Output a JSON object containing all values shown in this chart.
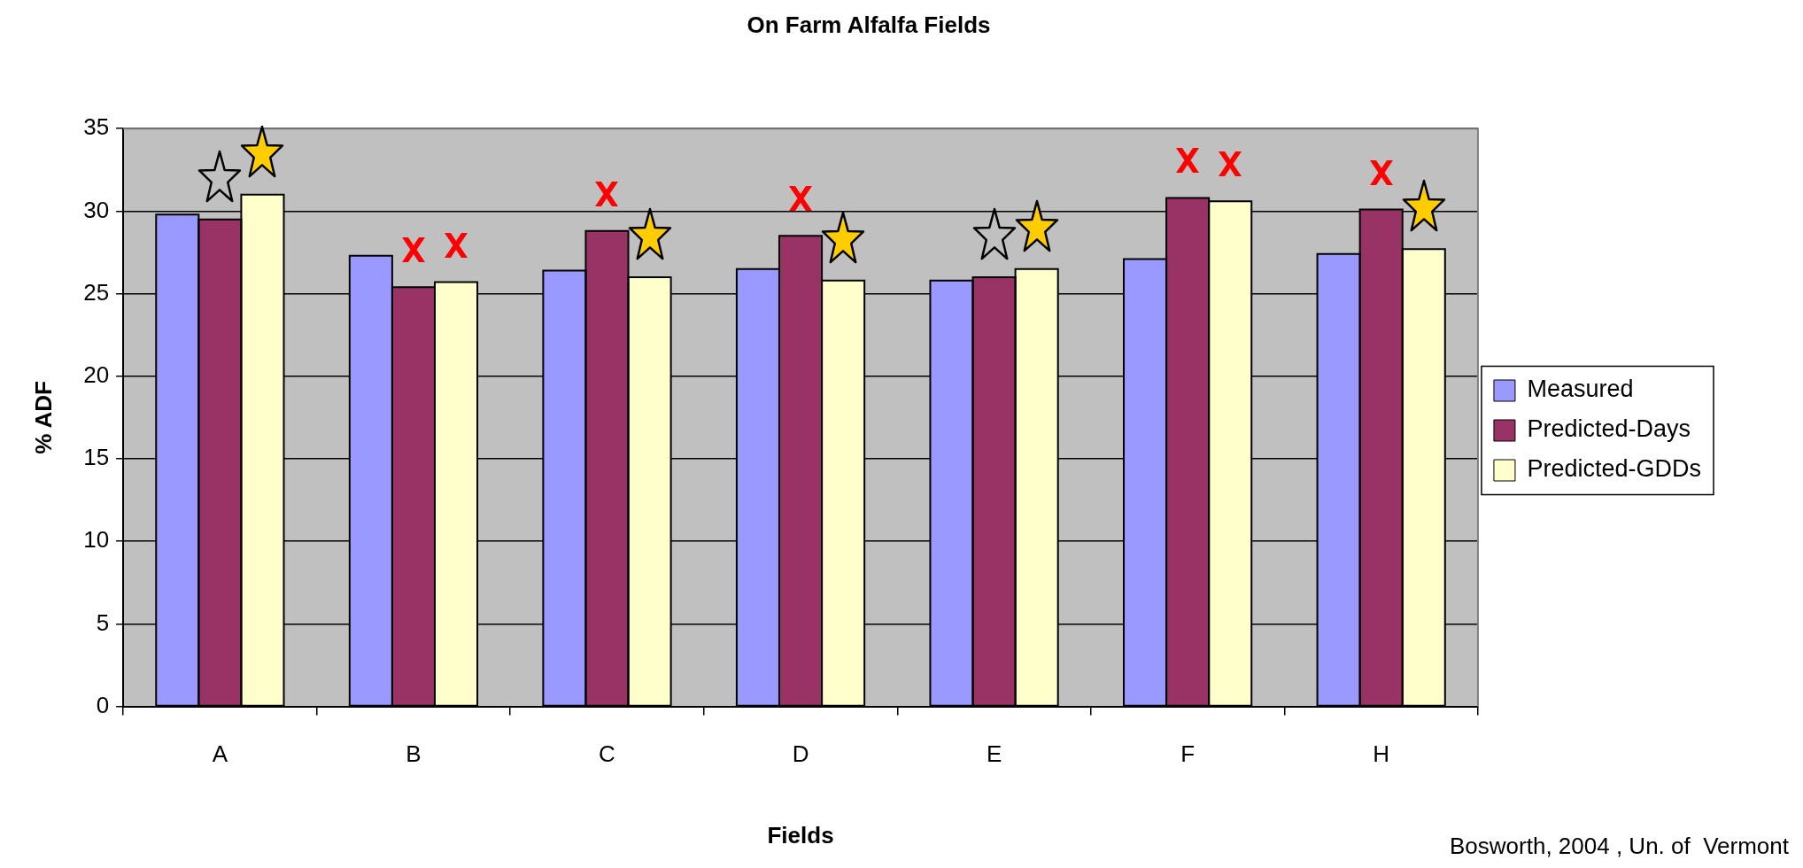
{
  "chart_data": {
    "type": "bar",
    "title": "On Farm Alfalfa Fields",
    "xlabel": "Fields",
    "ylabel": "% ADF",
    "categories": [
      "A",
      "B",
      "C",
      "D",
      "E",
      "F",
      "H"
    ],
    "series": [
      {
        "name": "Measured",
        "color": "#9999ff",
        "values": [
          29.8,
          27.3,
          26.4,
          26.5,
          25.8,
          27.1,
          27.4
        ]
      },
      {
        "name": "Predicted-Days",
        "color": "#993366",
        "values": [
          29.5,
          25.4,
          28.8,
          28.5,
          26.0,
          30.8,
          30.1
        ]
      },
      {
        "name": "Predicted-GDDs",
        "color": "#ffffcc",
        "values": [
          31.0,
          25.7,
          26.0,
          25.8,
          26.5,
          30.6,
          27.7
        ]
      }
    ],
    "ylim": [
      0,
      35
    ],
    "yticks": [
      0,
      5,
      10,
      15,
      20,
      25,
      30,
      35
    ],
    "grid": "y",
    "legend": "right",
    "annotations": [
      "Bosworth, 2004 , Un. of  Vermont"
    ]
  }
}
